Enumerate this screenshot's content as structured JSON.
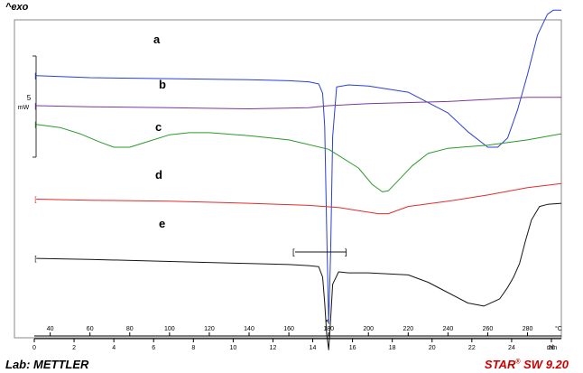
{
  "header": {
    "exo_label": "^exo"
  },
  "footer": {
    "lab_label": "Lab: METTLER",
    "software_brand": "STAR",
    "software_version": "SW 9.20"
  },
  "chart_data": {
    "type": "line",
    "title": "",
    "scale_bar": {
      "value": "5",
      "unit": "mW"
    },
    "x_axis_temperature": {
      "unit": "°C",
      "ticks": [
        40,
        60,
        80,
        100,
        120,
        140,
        160,
        180,
        200,
        220,
        240,
        260,
        280
      ],
      "range": [
        32,
        297
      ]
    },
    "x_axis_time": {
      "unit": "min",
      "ticks": [
        0,
        2,
        4,
        6,
        8,
        10,
        12,
        14,
        16,
        18,
        20,
        22,
        24,
        26
      ],
      "range": [
        0,
        26.5
      ]
    },
    "grid": false,
    "series": [
      {
        "name": "a",
        "color": "#2b3fd6",
        "x": [
          33,
          60,
          100,
          140,
          160,
          170,
          175,
          177,
          178,
          179,
          180,
          181,
          182,
          184,
          190,
          200,
          220,
          240,
          250,
          260,
          265,
          270,
          275,
          280,
          285,
          290,
          293,
          297
        ],
        "y": [
          109,
          107,
          106,
          105,
          104,
          103,
          101,
          92,
          60,
          -40,
          -130,
          -60,
          50,
          98,
          100,
          99,
          93,
          73,
          55,
          40,
          40,
          49,
          76,
          110,
          148,
          168,
          172,
          172
        ]
      },
      {
        "name": "b",
        "color": "#7a3a9a",
        "x": [
          33,
          60,
          100,
          140,
          170,
          180,
          200,
          240,
          280,
          297
        ],
        "y": [
          80,
          79,
          78,
          77,
          78,
          80,
          82,
          84,
          88,
          88
        ]
      },
      {
        "name": "c",
        "color": "#2a9a2a",
        "x": [
          33,
          45,
          55,
          65,
          72,
          80,
          90,
          100,
          110,
          120,
          140,
          160,
          180,
          195,
          202,
          207,
          210,
          215,
          222,
          230,
          240,
          260,
          280,
          297
        ],
        "y": [
          62,
          59,
          53,
          45,
          40,
          40,
          46,
          52,
          54,
          54,
          51,
          47,
          38,
          20,
          4,
          -3,
          -2,
          8,
          22,
          34,
          39,
          42,
          47,
          53
        ]
      },
      {
        "name": "d",
        "color": "#e12d2d",
        "x": [
          33,
          60,
          100,
          140,
          170,
          185,
          195,
          205,
          210,
          220,
          240,
          260,
          280,
          297
        ],
        "y": [
          -10,
          -11,
          -12,
          -14,
          -16,
          -18,
          -21,
          -24,
          -24,
          -17,
          -12,
          -6,
          1,
          5
        ]
      },
      {
        "name": "e",
        "color": "#151515",
        "x": [
          33,
          60,
          100,
          140,
          160,
          170,
          175,
          177,
          178,
          179,
          180,
          181,
          182,
          185,
          190,
          200,
          220,
          230,
          240,
          250,
          258,
          266,
          270,
          273,
          276,
          279,
          282,
          286,
          290,
          297
        ],
        "y": [
          -67,
          -68,
          -70,
          -72,
          -73,
          -74,
          -75,
          -85,
          -110,
          -140,
          -155,
          -125,
          -92,
          -80,
          -81,
          -81,
          -83,
          -90,
          -100,
          -110,
          -113,
          -106,
          -95,
          -85,
          -72,
          -50,
          -30,
          -17,
          -15,
          -14
        ]
      }
    ]
  }
}
